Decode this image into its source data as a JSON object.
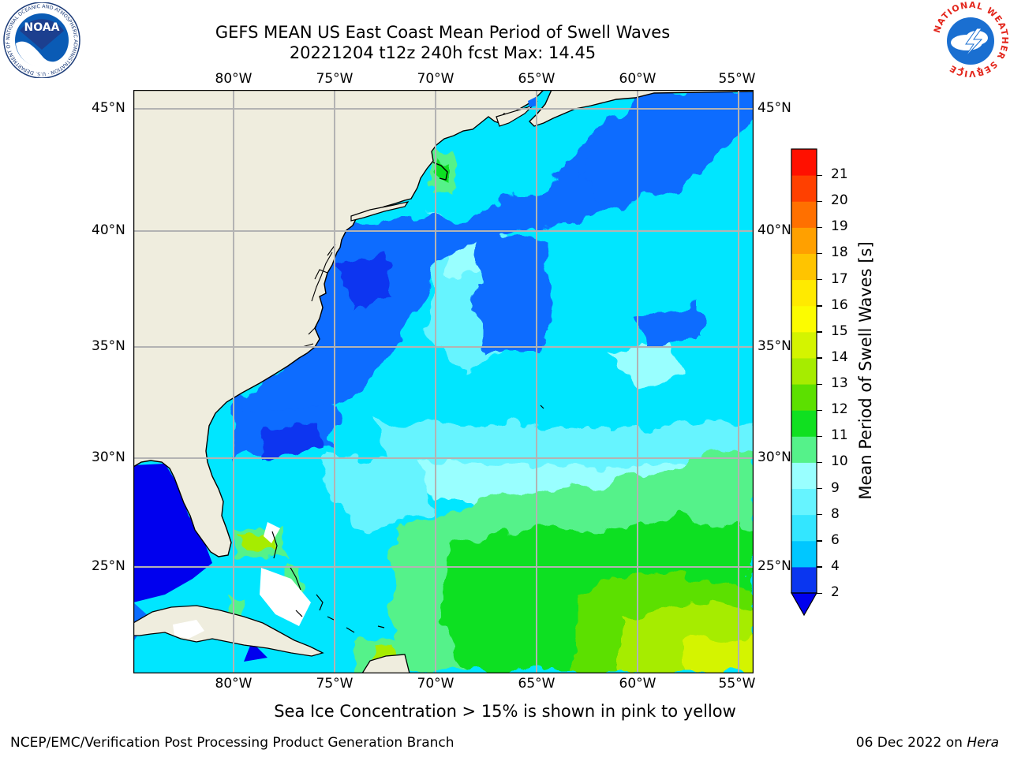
{
  "header": {
    "title_line1": "GEFS MEAN US East Coast Mean Period of Swell Waves",
    "title_line2": "20221204 t12z 240h fcst   Max: 14.45"
  },
  "map": {
    "longitude_labels": [
      "80°W",
      "75°W",
      "70°W",
      "65°W",
      "60°W",
      "55°W"
    ],
    "latitude_labels": [
      "45°N",
      "40°N",
      "35°N",
      "30°N",
      "25°N"
    ],
    "land_color": "#efedde",
    "grid_color": "#b0b0b0"
  },
  "colorbar": {
    "label": "Mean Period of Swell Waves [s]",
    "ticks": [
      "2",
      "4",
      "6",
      "8",
      "9",
      "10",
      "11",
      "12",
      "13",
      "14",
      "15",
      "16",
      "17",
      "18",
      "19",
      "20",
      "21"
    ],
    "colors": [
      "#0a36f0",
      "#00c7ff",
      "#33e6ff",
      "#66f4ff",
      "#99ffff",
      "#55f28a",
      "#10e020",
      "#5ce000",
      "#a6ec00",
      "#d4f400",
      "#fcfc00",
      "#ffea00",
      "#ffc400",
      "#ffa000",
      "#ff7000",
      "#ff4000",
      "#ff1000"
    ],
    "extend_color": "#0000ee"
  },
  "logos": {
    "left": {
      "text": "NOAA",
      "ring_text": "NATIONAL OCEANIC AND ATMOSPHERIC ADMINISTRATION · U.S. DEPARTMENT OF COMMERCE",
      "color": "#0a5bb5"
    },
    "right": {
      "ring_text": "NATIONAL WEATHER SERVICE",
      "color": "#e3261c"
    }
  },
  "note": "Sea Ice Concentration > 15% is shown in pink to yellow",
  "footer": {
    "left": "NCEP/EMC/Verification Post Processing Product Generation Branch",
    "right_prefix": "06 Dec 2022 on ",
    "right_machine": "Hera"
  }
}
